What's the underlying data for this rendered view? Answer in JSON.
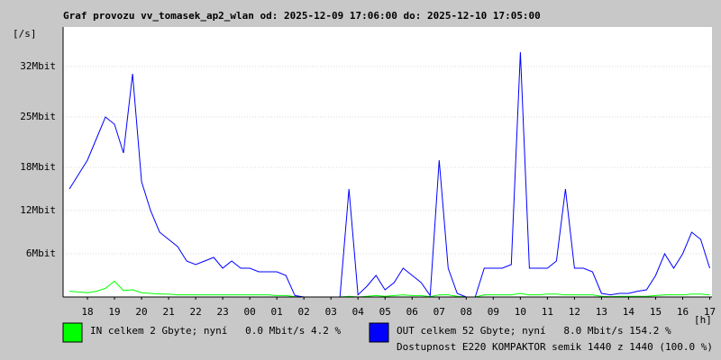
{
  "chart_data": {
    "type": "line",
    "title": "Graf provozu vv_tomasek_ap2_wlan od: 2025-12-09 17:06:00 do: 2025-12-10 17:05:00",
    "ylabel": "[/s]",
    "xlabel": "[h]",
    "xlim": [
      "2025-12-09 17:06:00",
      "2025-12-10 17:05:00"
    ],
    "ylim": [
      0,
      37.5
    ],
    "yticks": [
      {
        "value": 6,
        "label": "6Mbit"
      },
      {
        "value": 12,
        "label": "12Mbit"
      },
      {
        "value": 18,
        "label": "18Mbit"
      },
      {
        "value": 25,
        "label": "25Mbit"
      },
      {
        "value": 32,
        "label": "32Mbit"
      }
    ],
    "xticks": [
      {
        "value": "2025-12-09 18:00:00",
        "label": "18"
      },
      {
        "value": "2025-12-09 19:00:00",
        "label": "19"
      },
      {
        "value": "2025-12-09 20:00:00",
        "label": "20"
      },
      {
        "value": "2025-12-09 21:00:00",
        "label": "21"
      },
      {
        "value": "2025-12-09 22:00:00",
        "label": "22"
      },
      {
        "value": "2025-12-09 23:00:00",
        "label": "23"
      },
      {
        "value": "2025-12-10 00:00:00",
        "label": "00"
      },
      {
        "value": "2025-12-10 01:00:00",
        "label": "01"
      },
      {
        "value": "2025-12-10 02:00:00",
        "label": "02"
      },
      {
        "value": "2025-12-10 03:00:00",
        "label": "03"
      },
      {
        "value": "2025-12-10 04:00:00",
        "label": "04"
      },
      {
        "value": "2025-12-10 05:00:00",
        "label": "05"
      },
      {
        "value": "2025-12-10 06:00:00",
        "label": "06"
      },
      {
        "value": "2025-12-10 07:00:00",
        "label": "07"
      },
      {
        "value": "2025-12-10 08:00:00",
        "label": "08"
      },
      {
        "value": "2025-12-10 09:00:00",
        "label": "09"
      },
      {
        "value": "2025-12-10 10:00:00",
        "label": "10"
      },
      {
        "value": "2025-12-10 11:00:00",
        "label": "11"
      },
      {
        "value": "2025-12-10 12:00:00",
        "label": "12"
      },
      {
        "value": "2025-12-10 13:00:00",
        "label": "13"
      },
      {
        "value": "2025-12-10 14:00:00",
        "label": "14"
      },
      {
        "value": "2025-12-10 15:00:00",
        "label": "15"
      },
      {
        "value": "2025-12-10 16:00:00",
        "label": "16"
      },
      {
        "value": "2025-12-10 17:00:00",
        "label": "17"
      }
    ],
    "grid": true,
    "x": [
      "2025-12-09 17:20:00",
      "2025-12-09 17:40:00",
      "2025-12-09 18:00:00",
      "2025-12-09 18:20:00",
      "2025-12-09 18:40:00",
      "2025-12-09 19:00:00",
      "2025-12-09 19:20:00",
      "2025-12-09 19:40:00",
      "2025-12-09 20:00:00",
      "2025-12-09 20:20:00",
      "2025-12-09 20:40:00",
      "2025-12-09 21:00:00",
      "2025-12-09 21:20:00",
      "2025-12-09 21:40:00",
      "2025-12-09 22:00:00",
      "2025-12-09 22:20:00",
      "2025-12-09 22:40:00",
      "2025-12-09 23:00:00",
      "2025-12-09 23:20:00",
      "2025-12-09 23:40:00",
      "2025-12-10 00:00:00",
      "2025-12-10 00:20:00",
      "2025-12-10 00:40:00",
      "2025-12-10 01:00:00",
      "2025-12-10 01:20:00",
      "2025-12-10 01:40:00",
      "2025-12-10 02:00:00",
      "2025-12-10 02:20:00",
      "2025-12-10 02:40:00",
      "2025-12-10 03:00:00",
      "2025-12-10 03:20:00",
      "2025-12-10 03:40:00",
      "2025-12-10 04:00:00",
      "2025-12-10 04:20:00",
      "2025-12-10 04:40:00",
      "2025-12-10 05:00:00",
      "2025-12-10 05:20:00",
      "2025-12-10 05:40:00",
      "2025-12-10 06:00:00",
      "2025-12-10 06:20:00",
      "2025-12-10 06:40:00",
      "2025-12-10 07:00:00",
      "2025-12-10 07:20:00",
      "2025-12-10 07:40:00",
      "2025-12-10 08:00:00",
      "2025-12-10 08:20:00",
      "2025-12-10 08:40:00",
      "2025-12-10 09:00:00",
      "2025-12-10 09:20:00",
      "2025-12-10 09:40:00",
      "2025-12-10 10:00:00",
      "2025-12-10 10:20:00",
      "2025-12-10 10:40:00",
      "2025-12-10 11:00:00",
      "2025-12-10 11:20:00",
      "2025-12-10 11:40:00",
      "2025-12-10 12:00:00",
      "2025-12-10 12:20:00",
      "2025-12-10 12:40:00",
      "2025-12-10 13:00:00",
      "2025-12-10 13:20:00",
      "2025-12-10 13:40:00",
      "2025-12-10 14:00:00",
      "2025-12-10 14:20:00",
      "2025-12-10 14:40:00",
      "2025-12-10 15:00:00",
      "2025-12-10 15:20:00",
      "2025-12-10 15:40:00",
      "2025-12-10 16:00:00",
      "2025-12-10 16:20:00",
      "2025-12-10 16:40:00",
      "2025-12-10 17:00:00"
    ],
    "series": [
      {
        "name": "IN celkem 2 Gbyte; nyní   0.0 Mbit/s 4.2 %",
        "color": "#00ff00",
        "values": [
          0.8,
          0.7,
          0.6,
          0.8,
          1.2,
          2.2,
          0.9,
          1.0,
          0.6,
          0.5,
          0.4,
          0.4,
          0.3,
          0.3,
          0.3,
          0.3,
          0.3,
          0.3,
          0.3,
          0.3,
          0.3,
          0.3,
          0.3,
          0.2,
          0.2,
          0.05,
          0,
          0,
          0,
          0,
          0,
          0.1,
          0,
          0.1,
          0.2,
          0.1,
          0.2,
          0.3,
          0.2,
          0.2,
          0.05,
          0.3,
          0.3,
          0.1,
          0,
          0,
          0.3,
          0.3,
          0.3,
          0.3,
          0.5,
          0.3,
          0.3,
          0.4,
          0.4,
          0.3,
          0.3,
          0.3,
          0.3,
          0.1,
          0.05,
          0.1,
          0.1,
          0.1,
          0.1,
          0.2,
          0.3,
          0.3,
          0.3,
          0.4,
          0.4,
          0.3
        ]
      },
      {
        "name": "OUT celkem 52 Gbyte; nyní   8.0 Mbit/s 154.2 %",
        "color": "#0000ff",
        "values": [
          15,
          17,
          19,
          22,
          25,
          24,
          20,
          31,
          16,
          12,
          9,
          8,
          7,
          5,
          4.5,
          5,
          5.5,
          4,
          5,
          4,
          4,
          3.5,
          3.5,
          3.5,
          3,
          0.2,
          0,
          0,
          0,
          0,
          0,
          15,
          0.3,
          1.5,
          3,
          1,
          2,
          4,
          3,
          2,
          0.2,
          19,
          4,
          0.5,
          0,
          0,
          4,
          4,
          4,
          4.5,
          34,
          4,
          4,
          4,
          5,
          15,
          4,
          4,
          3.5,
          0.5,
          0.3,
          0.5,
          0.5,
          0.8,
          1,
          3,
          6,
          4,
          6,
          9,
          8,
          4
        ]
      }
    ],
    "availability": "Dostupnost E220 KOMPAKTOR semik 1440 z 1440 (100.0 %)",
    "availability_color": "#ff0000"
  }
}
